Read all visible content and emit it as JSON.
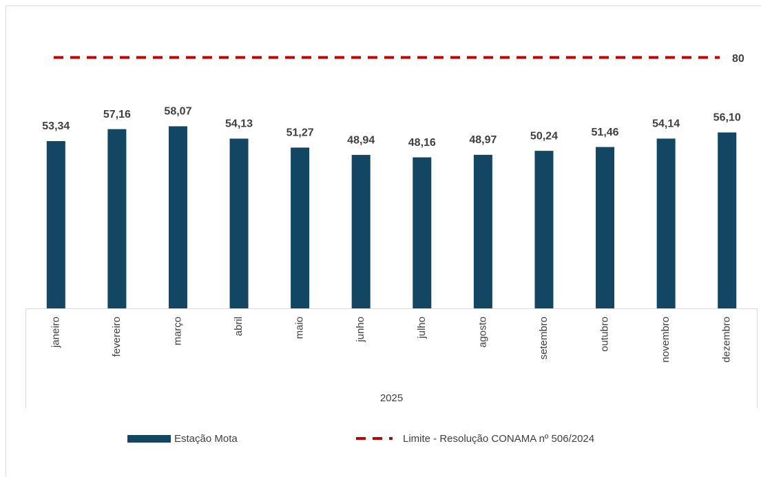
{
  "chart_data": {
    "type": "bar",
    "categories": [
      "janeiro",
      "fevereiro",
      "março",
      "abril",
      "maio",
      "junho",
      "julho",
      "agosto",
      "setembro",
      "outubro",
      "novembro",
      "dezembro"
    ],
    "group_label": "2025",
    "series": [
      {
        "name": "Estação Mota",
        "color": "#124662",
        "values": [
          53.34,
          57.16,
          58.07,
          54.13,
          51.27,
          48.94,
          48.16,
          48.97,
          50.24,
          51.46,
          54.14,
          56.1
        ],
        "value_labels": [
          "53,34",
          "57,16",
          "58,07",
          "54,13",
          "51,27",
          "48,94",
          "48,16",
          "48,97",
          "50,24",
          "51,46",
          "54,14",
          "56,10"
        ]
      }
    ],
    "limit": {
      "name": "Limite - Resolução CONAMA nº 506/2024",
      "value": 80,
      "color": "#c00000"
    },
    "ylim": [
      0,
      90
    ]
  }
}
